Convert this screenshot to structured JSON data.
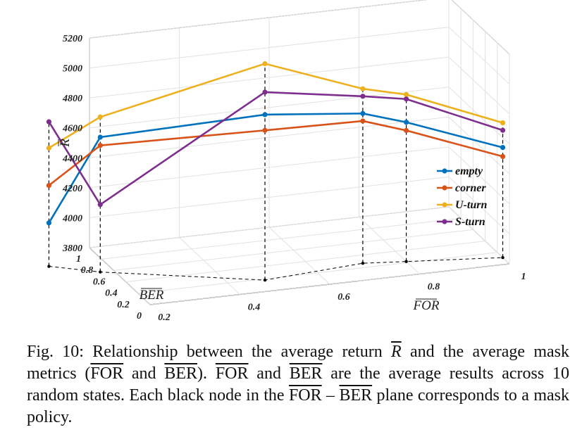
{
  "chart_data": {
    "type": "line",
    "title": "",
    "xlabel": "FOR",
    "ylabel": "BER",
    "zlabel": "R",
    "xlim": [
      0.2,
      1
    ],
    "ylim": [
      0,
      1
    ],
    "zlim": [
      3800,
      5200
    ],
    "x_ticks": [
      0.2,
      0.4,
      0.6,
      0.8,
      1
    ],
    "y_ticks": [
      0,
      0.2,
      0.4,
      0.6,
      0.8,
      1
    ],
    "z_ticks": [
      3800,
      4000,
      4200,
      4400,
      4600,
      4800,
      5000,
      5200
    ],
    "legend_position": "right",
    "grid": true,
    "mask_points": [
      {
        "for": 0.08,
        "ber": 0.78
      },
      {
        "for": 0.17,
        "ber": 0.6
      },
      {
        "for": 0.48,
        "ber": 0.18
      },
      {
        "for": 0.71,
        "ber": 0.27
      },
      {
        "for": 0.8,
        "ber": 0.22
      },
      {
        "for": 1.0,
        "ber": 0.11
      }
    ],
    "series": [
      {
        "name": "empty",
        "color": "#0072BD",
        "values": [
          4090,
          4700,
          4905,
          4800,
          4730,
          4535
        ]
      },
      {
        "name": "corner",
        "color": "#D95319",
        "values": [
          4340,
          4645,
          4800,
          4750,
          4675,
          4475
        ]
      },
      {
        "name": "U-turn",
        "color": "#EDB120",
        "values": [
          4590,
          4835,
          5245,
          4965,
          4915,
          4700
        ]
      },
      {
        "name": "S-turn",
        "color": "#7E2F8E",
        "values": [
          4765,
          4250,
          5055,
          4915,
          4885,
          4650
        ]
      }
    ]
  },
  "caption": {
    "prefix": "Fig. 10: Relationship between the average return ",
    "r_symbol": "R",
    "after_r": " and the average mask metrics (",
    "for_1": "FOR",
    "and_1": " and ",
    "ber_1": "BER",
    "after_paren": "). ",
    "for_2": "FOR",
    "and_2": " and ",
    "ber_2": "BER",
    "after_2": " are the average results across 10 random states. Each black node in the ",
    "for_3": "FOR",
    "minus": " – ",
    "ber_3": "BER",
    "suffix": " plane corresponds to a mask policy."
  }
}
